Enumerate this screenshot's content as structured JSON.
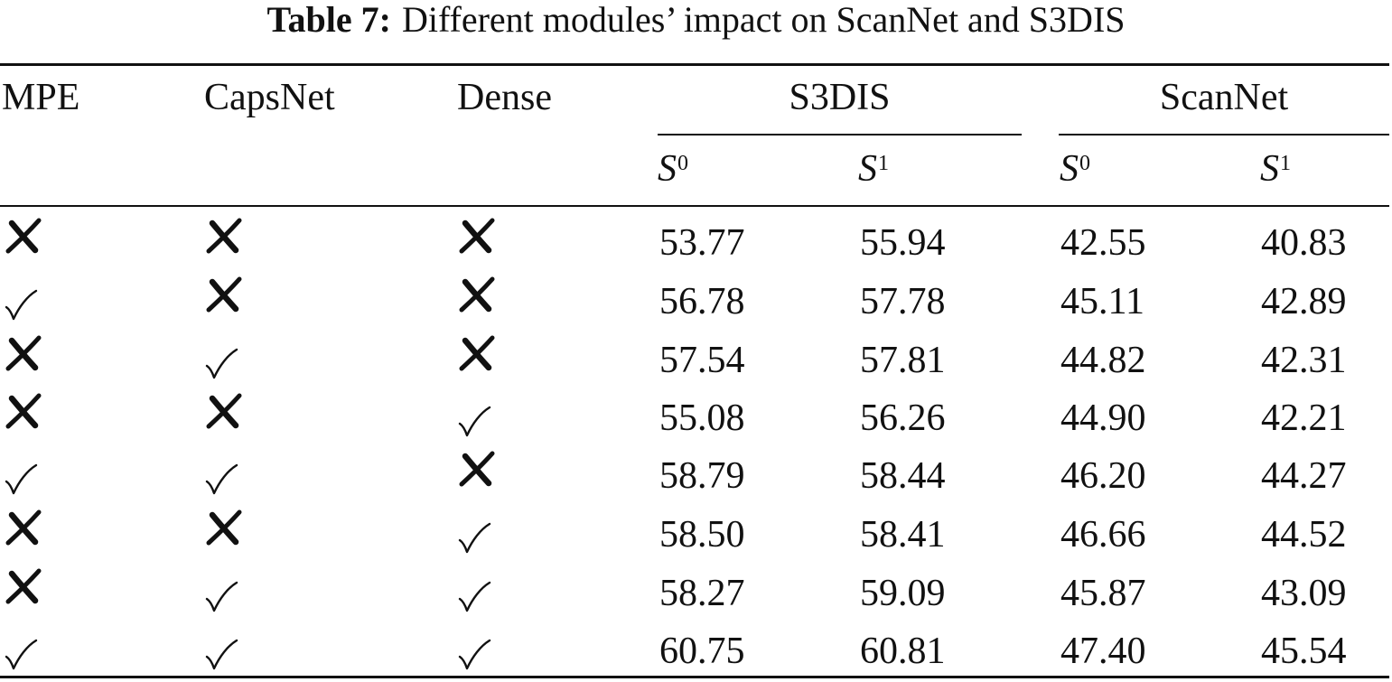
{
  "caption": {
    "label": "Table 7:",
    "text": "Different modules’ impact on ScanNet and S3DIS"
  },
  "header": {
    "mpe": "MPE",
    "capsnet": "CapsNet",
    "dense": "Dense",
    "s3dis": "S3DIS",
    "scannet": "ScanNet"
  },
  "subheader": {
    "s0_base": "S",
    "s0_sup": "0",
    "s1_base": "S",
    "s1_sup": "1"
  },
  "legend_icons": {
    "check": "check-icon",
    "cross": "cross-icon"
  },
  "rows": [
    {
      "mpe": "cross",
      "capsnet": "cross",
      "dense": "cross",
      "s3dis_s0": "53.77",
      "s3dis_s1": "55.94",
      "scannet_s0": "42.55",
      "scannet_s1": "40.83"
    },
    {
      "mpe": "check",
      "capsnet": "cross",
      "dense": "cross",
      "s3dis_s0": "56.78",
      "s3dis_s1": "57.78",
      "scannet_s0": "45.11",
      "scannet_s1": "42.89"
    },
    {
      "mpe": "cross",
      "capsnet": "check",
      "dense": "cross",
      "s3dis_s0": "57.54",
      "s3dis_s1": "57.81",
      "scannet_s0": "44.82",
      "scannet_s1": "42.31"
    },
    {
      "mpe": "cross",
      "capsnet": "cross",
      "dense": "check",
      "s3dis_s0": "55.08",
      "s3dis_s1": "56.26",
      "scannet_s0": "44.90",
      "scannet_s1": "42.21"
    },
    {
      "mpe": "check",
      "capsnet": "check",
      "dense": "cross",
      "s3dis_s0": "58.79",
      "s3dis_s1": "58.44",
      "scannet_s0": "46.20",
      "scannet_s1": "44.27"
    },
    {
      "mpe": "cross",
      "capsnet": "cross",
      "dense": "check",
      "s3dis_s0": "58.50",
      "s3dis_s1": "58.41",
      "scannet_s0": "46.66",
      "scannet_s1": "44.52"
    },
    {
      "mpe": "cross",
      "capsnet": "check",
      "dense": "check",
      "s3dis_s0": "58.27",
      "s3dis_s1": "59.09",
      "scannet_s0": "45.87",
      "scannet_s1": "43.09"
    },
    {
      "mpe": "check",
      "capsnet": "check",
      "dense": "check",
      "s3dis_s0": "60.75",
      "s3dis_s1": "60.81",
      "scannet_s0": "47.40",
      "scannet_s1": "45.54"
    }
  ]
}
